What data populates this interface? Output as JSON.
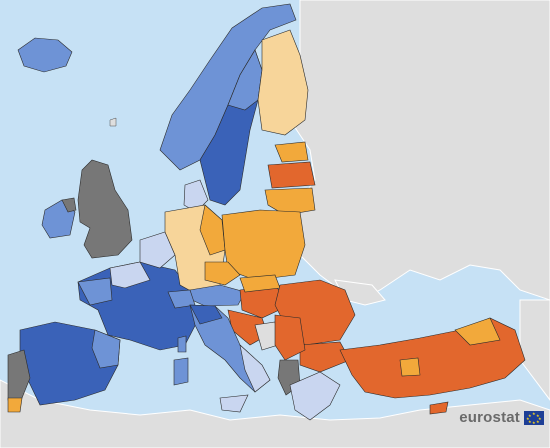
{
  "brand": {
    "logo_text": "eurostat"
  },
  "colors": {
    "sea": "#c6e1f5",
    "non_covered_land": "#dedede",
    "no_data": "#777777",
    "blue_dark": "#3a62b8",
    "blue_mid": "#6e93d6",
    "blue_light": "#c9d6f0",
    "orange_light": "#f7d59a",
    "orange_mid": "#f2a93b",
    "orange_dark": "#e2672d",
    "border": "#2b2b2b"
  },
  "icons": {
    "flag": "eu-flag-icon"
  }
}
